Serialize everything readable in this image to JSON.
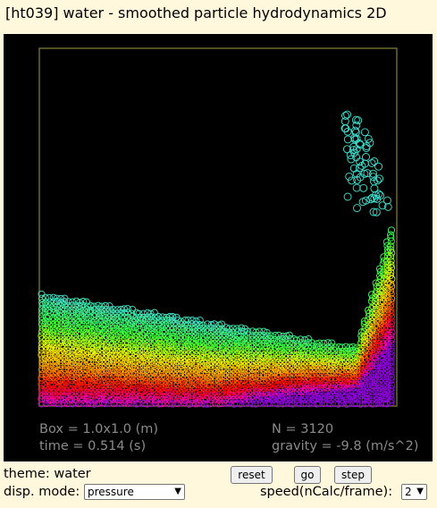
{
  "window": {
    "title": "[ht039] water - smoothed particle hydrodynamics 2D"
  },
  "stats": {
    "box": "Box = 1.0x1.0 (m)",
    "time": "time = 0.514 (s)",
    "n": "N = 3120",
    "gravity": "gravity = -9.8 (m/s^2)"
  },
  "controls": {
    "theme": "theme: water",
    "reset_label": "reset",
    "go_label": "go",
    "step_label": "step",
    "disp_mode_label": "disp. mode:",
    "disp_mode_value": "pressure",
    "speed_label": "speed(nCalc/frame):",
    "speed_value": "2"
  },
  "colors": {
    "background": "#fff8dc",
    "canvas": "#000000",
    "box_border": "#6b6b2a",
    "particle_low_pressure": "#40e0d0",
    "particle_high_pressure": "#3300ff"
  }
}
